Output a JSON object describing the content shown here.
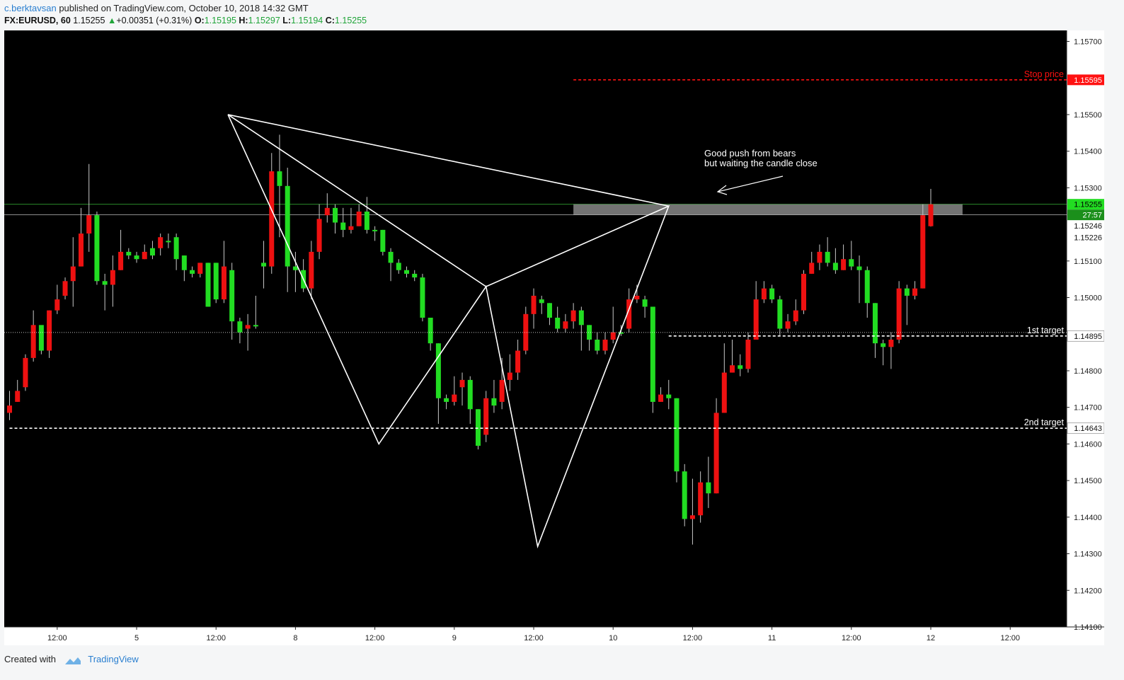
{
  "header": {
    "user": "c.berktavsan",
    "published": " published on TradingView.com, October 10, 2018 14:32 GMT",
    "symbol": "FX:EURUSD, 60",
    "price": "1.15255",
    "change": "+0.00351 (+0.31%)",
    "o_label": "O:",
    "o": "1.15195",
    "h_label": "H:",
    "h": "1.15297",
    "l_label": "L:",
    "l": "1.15194",
    "c_label": "C:",
    "c": "1.15255"
  },
  "footer": {
    "created": "Created with",
    "brand": "TradingView"
  },
  "colors": {
    "up": "#22dd22",
    "down": "#ee1111",
    "background": "#000000",
    "pattern": "#ffffff",
    "stop": "#ff1111"
  },
  "chart_data": {
    "type": "candlestick",
    "y_ticks": [
      "1.15700",
      "1.15500",
      "1.15400",
      "1.15300",
      "1.15100",
      "1.15000",
      "1.14800",
      "1.14700",
      "1.14600",
      "1.14500",
      "1.14400",
      "1.14300",
      "1.14200",
      "1.14100"
    ],
    "ylim": [
      1.141,
      1.1573
    ],
    "x_ticks": [
      {
        "label": "12:00",
        "i": 6
      },
      {
        "label": "5",
        "i": 16
      },
      {
        "label": "12:00",
        "i": 26
      },
      {
        "label": "8",
        "i": 36
      },
      {
        "label": "12:00",
        "i": 46
      },
      {
        "label": "9",
        "i": 56
      },
      {
        "label": "12:00",
        "i": 66
      },
      {
        "label": "10",
        "i": 76
      },
      {
        "label": "12:00",
        "i": 86
      },
      {
        "label": "11",
        "i": 96
      },
      {
        "label": "12:00",
        "i": 106
      },
      {
        "label": "12",
        "i": 116
      },
      {
        "label": "12:00",
        "i": 126
      }
    ],
    "price_badges": [
      {
        "label": "1.15595",
        "value": 1.15595,
        "style": "red"
      },
      {
        "label": "1.15255",
        "value": 1.15255,
        "style": "green"
      },
      {
        "label": "27:57",
        "value": 1.15226,
        "style": "timer"
      },
      {
        "label": "1.15246",
        "value": 1.15196,
        "style": "plain"
      },
      {
        "label": "1.15226",
        "value": 1.15164,
        "style": "plain"
      },
      {
        "label": "1.14895",
        "value": 1.14895,
        "style": "white"
      },
      {
        "label": "1.14643",
        "value": 1.14643,
        "style": "white"
      }
    ],
    "levels": [
      {
        "label": "Stop price",
        "value": 1.15595,
        "color": "#ff1111",
        "start_i": 71
      },
      {
        "label": "1st target",
        "value": 1.14895,
        "color": "#ffffff",
        "start_i": 83
      },
      {
        "label": "2nd target",
        "value": 1.14643,
        "color": "#ffffff",
        "start_i": 0
      }
    ],
    "annotation": {
      "line1": "Good push from bears",
      "line2": "but waiting the candle close"
    },
    "zone": {
      "top": 1.15255,
      "bottom": 1.15226,
      "start_i": 71,
      "end_i": 120
    },
    "pattern": [
      {
        "i": 27.5,
        "price": 1.155
      },
      {
        "i": 46.5,
        "price": 1.146
      },
      {
        "i": 60,
        "price": 1.1503
      },
      {
        "i": 66.5,
        "price": 1.1432
      },
      {
        "i": 83,
        "price": 1.1525
      },
      {
        "i": 60,
        "price": 1.1503
      },
      {
        "i": 27.5,
        "price": 1.155
      },
      {
        "i": 83,
        "price": 1.1525
      }
    ],
    "candles": [
      [
        1.14705,
        1.14745,
        1.14665,
        1.14685
      ],
      [
        1.14745,
        1.14775,
        1.14715,
        1.14715
      ],
      [
        1.14835,
        1.14845,
        1.14745,
        1.14755
      ],
      [
        1.14925,
        1.14965,
        1.14825,
        1.14835
      ],
      [
        1.14855,
        1.14915,
        1.14845,
        1.14925
      ],
      [
        1.14965,
        1.14965,
        1.14835,
        1.14855
      ],
      [
        1.14995,
        1.15035,
        1.14955,
        1.14965
      ],
      [
        1.15045,
        1.15055,
        1.14995,
        1.15005
      ],
      [
        1.15085,
        1.15165,
        1.14975,
        1.15045
      ],
      [
        1.15175,
        1.15245,
        1.15085,
        1.15085
      ],
      [
        1.15225,
        1.15365,
        1.15125,
        1.15175
      ],
      [
        1.15045,
        1.15235,
        1.15035,
        1.15225
      ],
      [
        1.15035,
        1.15065,
        1.14965,
        1.15045
      ],
      [
        1.15075,
        1.15115,
        1.14975,
        1.15035
      ],
      [
        1.15125,
        1.15185,
        1.15075,
        1.15075
      ],
      [
        1.15115,
        1.15135,
        1.15105,
        1.15125
      ],
      [
        1.15105,
        1.15125,
        1.15095,
        1.15115
      ],
      [
        1.15125,
        1.15145,
        1.15105,
        1.15105
      ],
      [
        1.15115,
        1.15155,
        1.15105,
        1.15135
      ],
      [
        1.15165,
        1.15175,
        1.15115,
        1.15135
      ],
      [
        1.15155,
        1.15175,
        1.15135,
        1.15155
      ],
      [
        1.15105,
        1.15175,
        1.15075,
        1.15165
      ],
      [
        1.15075,
        1.15115,
        1.15045,
        1.15115
      ],
      [
        1.15065,
        1.15085,
        1.15055,
        1.15075
      ],
      [
        1.15095,
        1.15095,
        1.15055,
        1.15065
      ],
      [
        1.14975,
        1.15095,
        1.14975,
        1.15095
      ],
      [
        1.14995,
        1.15095,
        1.14985,
        1.15095
      ],
      [
        1.15085,
        1.15155,
        1.14985,
        1.14995
      ],
      [
        1.14935,
        1.15095,
        1.14885,
        1.15075
      ],
      [
        1.14905,
        1.14945,
        1.14875,
        1.14935
      ],
      [
        1.14925,
        1.14955,
        1.14855,
        1.14915
      ],
      [
        1.14925,
        1.15005,
        1.14915,
        1.14925
      ],
      [
        1.15085,
        1.15155,
        1.15025,
        1.15095
      ],
      [
        1.15345,
        1.15395,
        1.15065,
        1.15085
      ],
      [
        1.15305,
        1.15445,
        1.15165,
        1.15345
      ],
      [
        1.15085,
        1.15355,
        1.15015,
        1.15305
      ],
      [
        1.15075,
        1.15125,
        1.15015,
        1.15085
      ],
      [
        1.15025,
        1.15105,
        1.15015,
        1.15075
      ],
      [
        1.15125,
        1.15155,
        1.14995,
        1.15025
      ],
      [
        1.15215,
        1.15255,
        1.15105,
        1.15125
      ],
      [
        1.15245,
        1.15285,
        1.15205,
        1.15225
      ],
      [
        1.15205,
        1.15255,
        1.15175,
        1.15245
      ],
      [
        1.15185,
        1.15245,
        1.15165,
        1.15205
      ],
      [
        1.15195,
        1.15245,
        1.15175,
        1.15185
      ],
      [
        1.15235,
        1.15255,
        1.15195,
        1.15195
      ],
      [
        1.15185,
        1.15275,
        1.15175,
        1.15235
      ],
      [
        1.15185,
        1.15195,
        1.15155,
        1.15185
      ],
      [
        1.15125,
        1.15185,
        1.15115,
        1.15185
      ],
      [
        1.15095,
        1.15135,
        1.15045,
        1.15125
      ],
      [
        1.15075,
        1.15105,
        1.15065,
        1.15095
      ],
      [
        1.15065,
        1.15085,
        1.15055,
        1.15075
      ],
      [
        1.15055,
        1.15075,
        1.15045,
        1.15065
      ],
      [
        1.14945,
        1.15065,
        1.14935,
        1.15055
      ],
      [
        1.14875,
        1.14945,
        1.14855,
        1.14945
      ],
      [
        1.14725,
        1.14875,
        1.14655,
        1.14875
      ],
      [
        1.14715,
        1.14735,
        1.14695,
        1.14725
      ],
      [
        1.14735,
        1.14785,
        1.14705,
        1.14715
      ],
      [
        1.14775,
        1.14795,
        1.14705,
        1.14755
      ],
      [
        1.14695,
        1.14785,
        1.14655,
        1.14775
      ],
      [
        1.14595,
        1.14695,
        1.14585,
        1.14695
      ],
      [
        1.14725,
        1.14745,
        1.14605,
        1.14625
      ],
      [
        1.14705,
        1.14775,
        1.14685,
        1.14725
      ],
      [
        1.14775,
        1.14835,
        1.14695,
        1.14715
      ],
      [
        1.14795,
        1.14845,
        1.14745,
        1.14775
      ],
      [
        1.14855,
        1.14885,
        1.14775,
        1.14795
      ],
      [
        1.14955,
        1.14975,
        1.14845,
        1.14855
      ],
      [
        1.15005,
        1.15025,
        1.14915,
        1.14955
      ],
      [
        1.14985,
        1.15005,
        1.14955,
        1.14995
      ],
      [
        1.14945,
        1.14985,
        1.14925,
        1.14985
      ],
      [
        1.14915,
        1.14975,
        1.14905,
        1.14945
      ],
      [
        1.14935,
        1.14955,
        1.14905,
        1.14915
      ],
      [
        1.14965,
        1.14985,
        1.14915,
        1.14935
      ],
      [
        1.14925,
        1.14975,
        1.14855,
        1.14965
      ],
      [
        1.14885,
        1.14925,
        1.14855,
        1.14925
      ],
      [
        1.14855,
        1.14905,
        1.14845,
        1.14885
      ],
      [
        1.14885,
        1.14905,
        1.14845,
        1.14855
      ],
      [
        1.14905,
        1.14975,
        1.14875,
        1.14885
      ],
      [
        1.14905,
        1.14925,
        1.14895,
        1.14905
      ],
      [
        1.14995,
        1.15025,
        1.14905,
        1.14915
      ],
      [
        1.15005,
        1.15035,
        1.14985,
        1.14995
      ],
      [
        1.14975,
        1.15005,
        1.14945,
        1.14995
      ],
      [
        1.14715,
        1.14975,
        1.14685,
        1.14975
      ],
      [
        1.14735,
        1.14755,
        1.14715,
        1.14715
      ],
      [
        1.14725,
        1.14775,
        1.14695,
        1.14735
      ],
      [
        1.14525,
        1.14725,
        1.14495,
        1.14725
      ],
      [
        1.14395,
        1.14545,
        1.14375,
        1.14525
      ],
      [
        1.14405,
        1.14505,
        1.14325,
        1.14395
      ],
      [
        1.14495,
        1.14525,
        1.14385,
        1.14405
      ],
      [
        1.14465,
        1.14565,
        1.14425,
        1.14495
      ],
      [
        1.14685,
        1.14725,
        1.14465,
        1.14465
      ],
      [
        1.14795,
        1.14875,
        1.14685,
        1.14685
      ],
      [
        1.14815,
        1.14885,
        1.14795,
        1.14795
      ],
      [
        1.14805,
        1.14845,
        1.14785,
        1.14815
      ],
      [
        1.14885,
        1.14905,
        1.14795,
        1.14805
      ],
      [
        1.14995,
        1.15045,
        1.14885,
        1.14885
      ],
      [
        1.15025,
        1.15045,
        1.14985,
        1.14995
      ],
      [
        1.14995,
        1.15035,
        1.14985,
        1.15025
      ],
      [
        1.14915,
        1.15005,
        1.14895,
        1.14995
      ],
      [
        1.14935,
        1.14955,
        1.14905,
        1.14915
      ],
      [
        1.14965,
        1.14995,
        1.14925,
        1.14935
      ],
      [
        1.15065,
        1.15075,
        1.14955,
        1.14965
      ],
      [
        1.15095,
        1.15125,
        1.15065,
        1.15065
      ],
      [
        1.15125,
        1.15145,
        1.15075,
        1.15095
      ],
      [
        1.15095,
        1.15165,
        1.15085,
        1.15125
      ],
      [
        1.15075,
        1.15135,
        1.15065,
        1.15095
      ],
      [
        1.15105,
        1.15145,
        1.15075,
        1.15075
      ],
      [
        1.15085,
        1.15155,
        1.15075,
        1.15105
      ],
      [
        1.15075,
        1.15115,
        1.14985,
        1.15085
      ],
      [
        1.14985,
        1.15085,
        1.14945,
        1.15075
      ],
      [
        1.14875,
        1.14985,
        1.14835,
        1.14985
      ],
      [
        1.14865,
        1.14885,
        1.14815,
        1.14875
      ],
      [
        1.14885,
        1.14905,
        1.14805,
        1.14865
      ],
      [
        1.15025,
        1.15045,
        1.14875,
        1.14885
      ],
      [
        1.15005,
        1.15035,
        1.14925,
        1.15025
      ],
      [
        1.15025,
        1.15045,
        1.14995,
        1.15005
      ],
      [
        1.15225,
        1.15255,
        1.15025,
        1.15025
      ],
      [
        1.15255,
        1.15297,
        1.15194,
        1.15195
      ]
    ]
  }
}
